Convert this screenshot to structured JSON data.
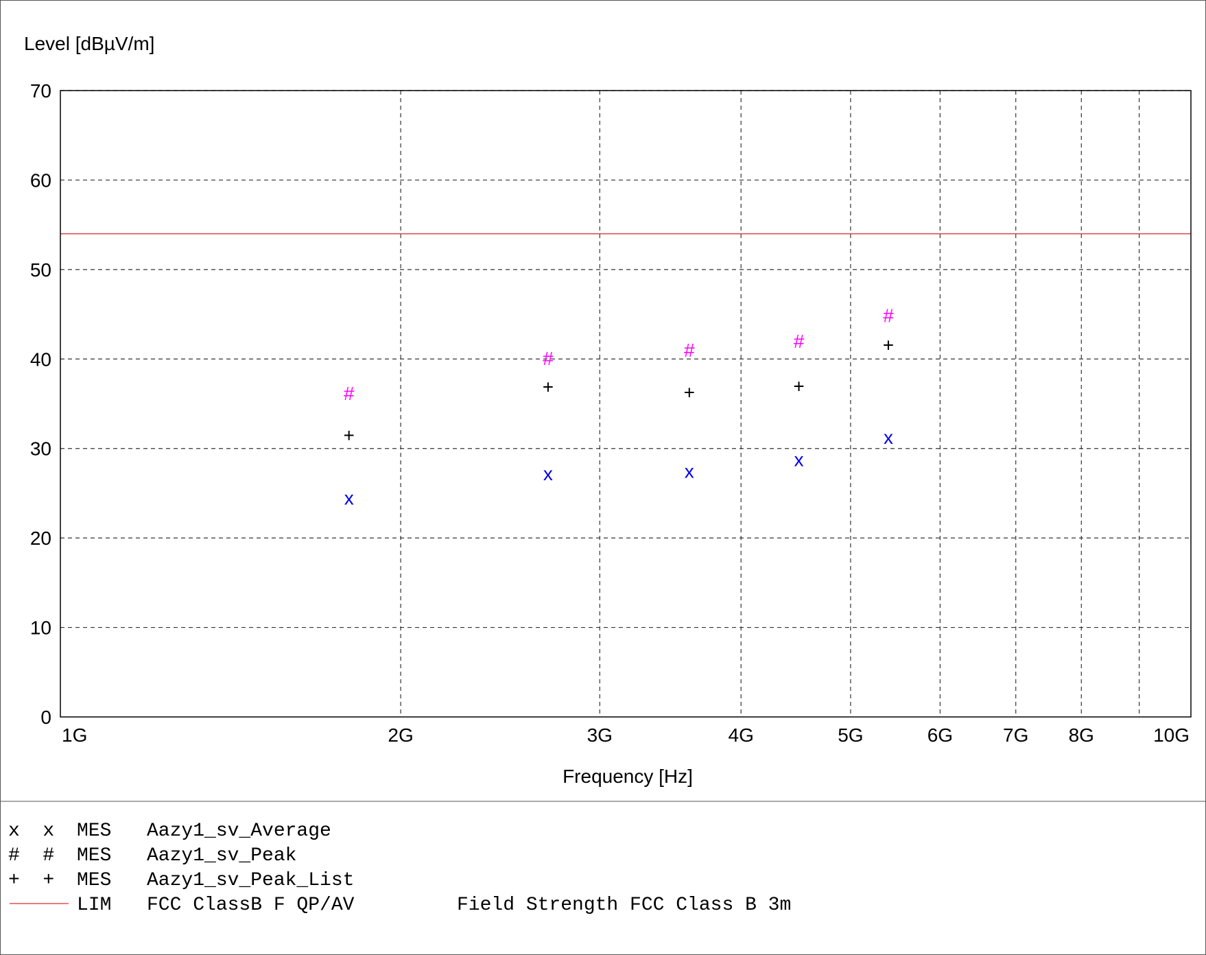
{
  "chart_data": {
    "type": "scatter",
    "ylabel": "Level [dBµV/m]",
    "xlabel": "Frequency [Hz]",
    "x_scale": "log",
    "xlim": [
      1000000000,
      10000000000
    ],
    "ylim": [
      0,
      70
    ],
    "grid": true,
    "x_ticks": [
      {
        "value": 1000000000,
        "label": "1G"
      },
      {
        "value": 2000000000,
        "label": "2G"
      },
      {
        "value": 3000000000,
        "label": "3G"
      },
      {
        "value": 4000000000,
        "label": "4G"
      },
      {
        "value": 5000000000,
        "label": "5G"
      },
      {
        "value": 6000000000,
        "label": "6G"
      },
      {
        "value": 7000000000,
        "label": "7G"
      },
      {
        "value": 8000000000,
        "label": "8G"
      },
      {
        "value": 10000000000,
        "label": "10G"
      }
    ],
    "x_gridlines": [
      2000000000,
      3000000000,
      4000000000,
      5000000000,
      6000000000,
      7000000000,
      8000000000,
      9000000000
    ],
    "y_ticks": [
      0,
      10,
      20,
      30,
      40,
      50,
      60,
      70
    ],
    "series": [
      {
        "name": "Aazy1_sv_Average",
        "marker": "x",
        "color": "#0000ee",
        "points": [
          {
            "x": 1800000000,
            "y": 24.5
          },
          {
            "x": 2700000000,
            "y": 27.2
          },
          {
            "x": 3600000000,
            "y": 27.5
          },
          {
            "x": 4500000000,
            "y": 28.8
          },
          {
            "x": 5400000000,
            "y": 31.3
          }
        ]
      },
      {
        "name": "Aazy1_sv_Peak",
        "marker": "#",
        "color": "#ff00ff",
        "points": [
          {
            "x": 1800000000,
            "y": 36.2
          },
          {
            "x": 2700000000,
            "y": 40.1
          },
          {
            "x": 3600000000,
            "y": 41.0
          },
          {
            "x": 4500000000,
            "y": 42.0
          },
          {
            "x": 5400000000,
            "y": 44.9
          }
        ]
      },
      {
        "name": "Aazy1_sv_Peak_List",
        "marker": "+",
        "color": "#000000",
        "points": [
          {
            "x": 1800000000,
            "y": 31.5
          },
          {
            "x": 2700000000,
            "y": 36.9
          },
          {
            "x": 3600000000,
            "y": 36.3
          },
          {
            "x": 4500000000,
            "y": 37.0
          },
          {
            "x": 5400000000,
            "y": 41.6
          }
        ]
      }
    ],
    "limit_line": {
      "name": "FCC ClassB F QP/AV",
      "y": 54,
      "color": "#e05050"
    }
  },
  "legend": [
    {
      "symbol": "x  x",
      "symbol_color": "#0000ee",
      "type": "MES",
      "name": "Aazy1_sv_Average",
      "description": ""
    },
    {
      "symbol": "#  #",
      "symbol_color": "#ff00ff",
      "type": "MES",
      "name": "Aazy1_sv_Peak",
      "description": ""
    },
    {
      "symbol": "+  +",
      "symbol_color": "#000000",
      "type": "MES",
      "name": "Aazy1_sv_Peak_List",
      "description": ""
    },
    {
      "symbol": "line",
      "symbol_color": "#e05050",
      "type": "LIM",
      "name": "FCC ClassB F QP/AV",
      "description": "Field Strength FCC Class B 3m"
    }
  ]
}
